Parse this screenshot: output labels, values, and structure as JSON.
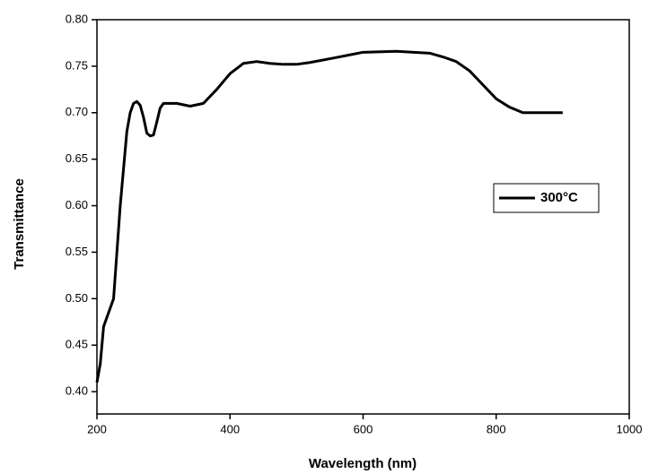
{
  "chart_data": {
    "type": "line",
    "x_label": "Wavelength (nm)",
    "y_label": "Transmittance",
    "x": [
      200,
      205,
      210,
      215,
      220,
      225,
      230,
      235,
      240,
      245,
      250,
      255,
      260,
      265,
      270,
      275,
      280,
      285,
      290,
      295,
      300,
      320,
      340,
      360,
      380,
      400,
      420,
      440,
      460,
      480,
      500,
      520,
      550,
      600,
      650,
      700,
      720,
      740,
      760,
      780,
      800,
      820,
      840,
      860,
      880,
      900
    ],
    "series": [
      {
        "name": "300°C",
        "color": "#000000",
        "values": [
          0.41,
          0.43,
          0.47,
          0.48,
          0.49,
          0.5,
          0.55,
          0.6,
          0.64,
          0.68,
          0.7,
          0.71,
          0.712,
          0.708,
          0.695,
          0.678,
          0.675,
          0.676,
          0.69,
          0.705,
          0.71,
          0.71,
          0.707,
          0.71,
          0.725,
          0.742,
          0.753,
          0.755,
          0.753,
          0.752,
          0.752,
          0.754,
          0.758,
          0.765,
          0.766,
          0.764,
          0.76,
          0.755,
          0.745,
          0.73,
          0.715,
          0.706,
          0.7,
          0.7,
          0.7,
          0.7
        ]
      }
    ],
    "xlim": [
      200,
      1000
    ],
    "xticks": [
      200,
      400,
      600,
      800,
      1000
    ],
    "ylim": [
      0.376,
      0.8
    ],
    "yticks": [
      {
        "value": 0.4,
        "label": "0.40"
      },
      0.45,
      {
        "value": 0.5,
        "label": "0.50"
      },
      0.55,
      {
        "value": 0.6,
        "label": "0.60"
      },
      0.65,
      {
        "value": 0.7,
        "label": "0.70"
      },
      0.75,
      {
        "value": 0.8,
        "label": "0.80"
      }
    ],
    "legend": "right"
  }
}
